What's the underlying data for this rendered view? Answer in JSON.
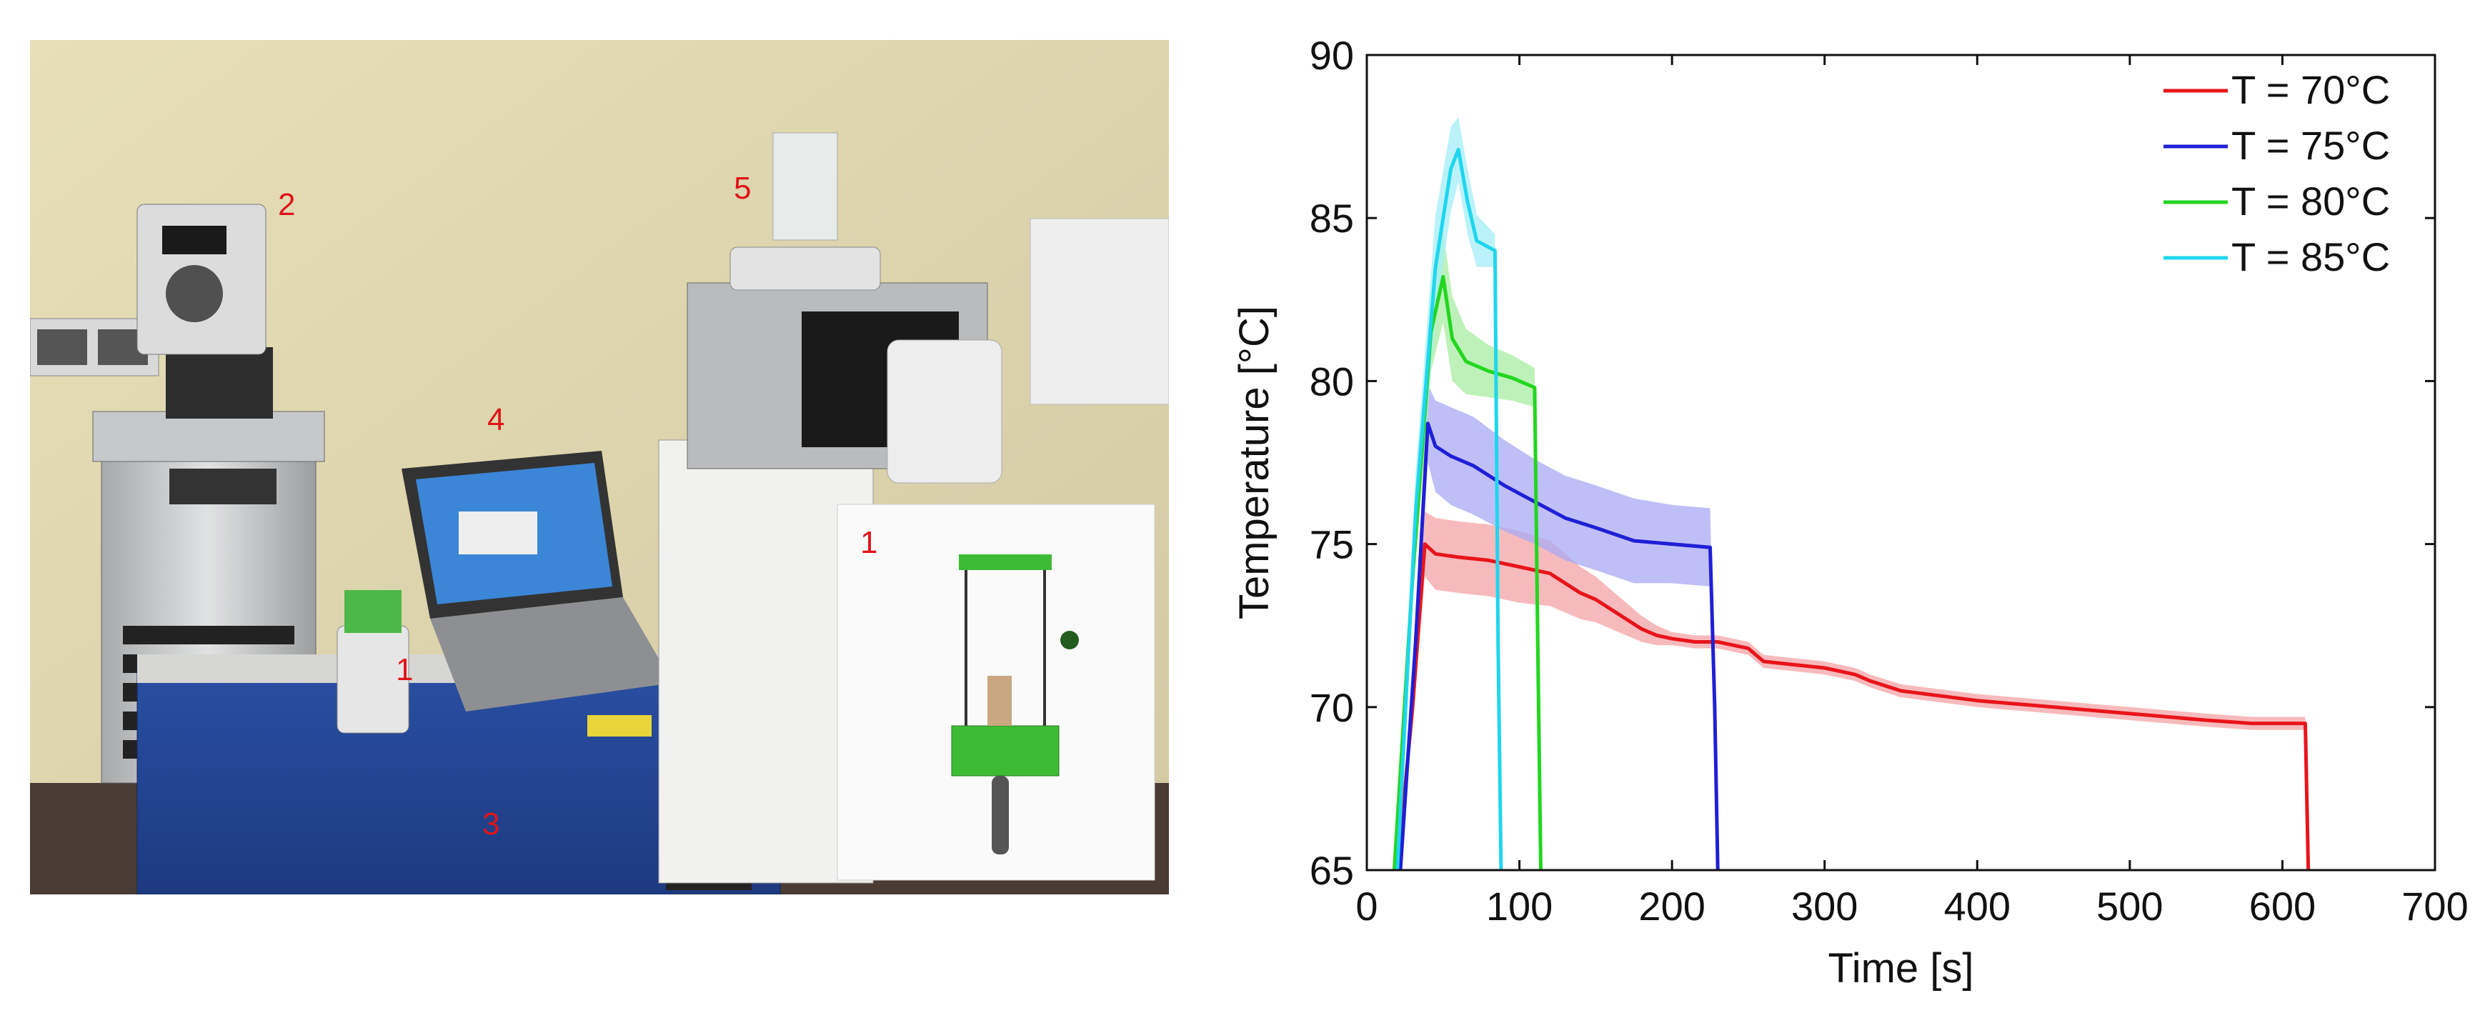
{
  "photo": {
    "labels": [
      "1",
      "2",
      "3",
      "4",
      "5"
    ],
    "inset_label": "1"
  },
  "chart_data": {
    "type": "line",
    "xlabel": "Time [s]",
    "ylabel": "Temperature [°C]",
    "xlim": [
      0,
      700
    ],
    "ylim": [
      65,
      90
    ],
    "xticks": [
      0,
      100,
      200,
      300,
      400,
      500,
      600,
      700
    ],
    "yticks": [
      65,
      70,
      75,
      80,
      85,
      90
    ],
    "legend_position": "top-right",
    "series": [
      {
        "name": "T = 70°C",
        "color": "#e8141b",
        "band_color": "#f4a3a5",
        "x": [
          20,
          30,
          38,
          45,
          60,
          80,
          100,
          120,
          130,
          140,
          150,
          160,
          170,
          180,
          190,
          200,
          215,
          230,
          240,
          250,
          260,
          280,
          300,
          320,
          330,
          350,
          400,
          450,
          500,
          550,
          580,
          600,
          615,
          617
        ],
        "y": [
          65,
          70,
          75,
          74.7,
          74.6,
          74.5,
          74.3,
          74.1,
          73.8,
          73.5,
          73.3,
          73.0,
          72.7,
          72.4,
          72.2,
          72.1,
          72.0,
          72.0,
          71.9,
          71.8,
          71.4,
          71.3,
          71.2,
          71.0,
          70.8,
          70.5,
          70.2,
          70.0,
          69.8,
          69.6,
          69.5,
          69.5,
          69.5,
          65
        ],
        "spread": [
          0,
          0.5,
          1.0,
          1.1,
          1.1,
          1.1,
          1.1,
          1.0,
          0.9,
          0.8,
          0.7,
          0.6,
          0.5,
          0.4,
          0.3,
          0.2,
          0.2,
          0.2,
          0.2,
          0.2,
          0.2,
          0.2,
          0.2,
          0.2,
          0.2,
          0.2,
          0.2,
          0.2,
          0.2,
          0.2,
          0.2,
          0.2,
          0.2,
          0
        ]
      },
      {
        "name": "T = 75°C",
        "color": "#1f1fd6",
        "band_color": "#a9a9f4",
        "x": [
          22,
          32,
          40,
          45,
          55,
          70,
          90,
          110,
          130,
          150,
          175,
          200,
          225,
          228,
          230
        ],
        "y": [
          65,
          72,
          78.7,
          78.0,
          77.7,
          77.4,
          76.8,
          76.3,
          75.8,
          75.5,
          75.1,
          75.0,
          74.9,
          70,
          65
        ],
        "spread": [
          0,
          0.8,
          1.2,
          1.4,
          1.5,
          1.5,
          1.4,
          1.3,
          1.3,
          1.3,
          1.3,
          1.2,
          1.2,
          0,
          0
        ]
      },
      {
        "name": "T = 80°C",
        "color": "#22d61f",
        "band_color": "#a8eca2",
        "x": [
          18,
          30,
          42,
          50,
          56,
          65,
          80,
          95,
          110,
          112,
          114
        ],
        "y": [
          65,
          74,
          81.5,
          83.2,
          81.3,
          80.6,
          80.3,
          80.1,
          79.8,
          72,
          65
        ],
        "spread": [
          0,
          0.8,
          1.2,
          1.4,
          1.3,
          1.0,
          0.8,
          0.7,
          0.6,
          0,
          0
        ]
      },
      {
        "name": "T = 85°C",
        "color": "#1fd6ee",
        "band_color": "#a4eef8",
        "x": [
          20,
          32,
          45,
          55,
          60,
          66,
          72,
          80,
          84,
          86,
          88
        ],
        "y": [
          65,
          76,
          83.5,
          86.5,
          87.1,
          85.5,
          84.3,
          84.1,
          84.0,
          72,
          65
        ],
        "spread": [
          0,
          1.2,
          1.6,
          1.3,
          1.0,
          1.0,
          0.8,
          0.6,
          0.5,
          0,
          0
        ]
      }
    ]
  }
}
